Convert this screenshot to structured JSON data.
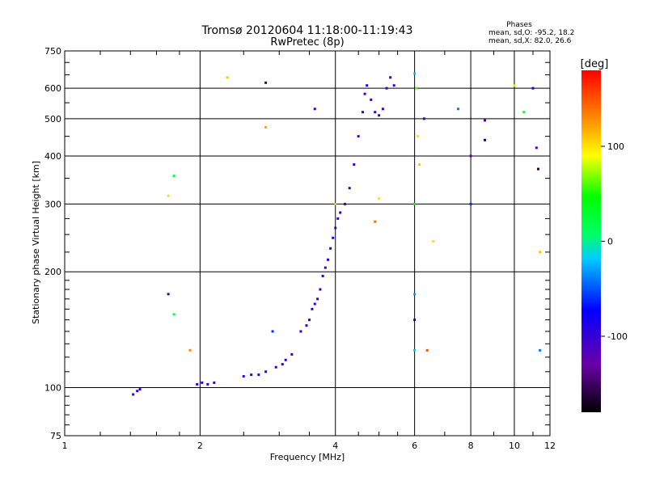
{
  "chart_data": {
    "type": "scatter",
    "title": "Tromsø 20120604 11:18:00-11:19:43",
    "subtitle": "RwPretec (8p)",
    "stats": {
      "title": "Phases",
      "line1": "mean, sd,O: -95.2, 18.2",
      "line2": "mean, sd,X:  82.0, 26.6"
    },
    "xlabel": "Frequency [MHz]",
    "ylabel": "Stationary phase Virtual Height [km]",
    "x_scale": "log",
    "y_scale": "log",
    "xlim": [
      1,
      12
    ],
    "ylim": [
      75,
      750
    ],
    "x_ticks": [
      1,
      2,
      4,
      6,
      8,
      10,
      12
    ],
    "x_tick_labels": [
      "1",
      "2",
      "4",
      "6",
      "8",
      "10",
      "12"
    ],
    "y_ticks": [
      75,
      100,
      200,
      300,
      400,
      500,
      600,
      750
    ],
    "y_tick_labels": [
      "75",
      "100",
      "200",
      "300",
      "400",
      "500",
      "600",
      "750"
    ],
    "grid": true,
    "colorbar": {
      "label": "[deg]",
      "min": -180,
      "max": 180,
      "ticks": [
        100,
        0,
        -100
      ],
      "tick_labels": [
        "100",
        "0",
        "-100"
      ]
    },
    "series": [
      {
        "values": [
          [
            1.42,
            96,
            -100
          ],
          [
            1.45,
            98,
            -100
          ],
          [
            1.47,
            99,
            -95
          ],
          [
            1.97,
            102,
            -100
          ],
          [
            2.02,
            103,
            -95
          ],
          [
            2.08,
            102,
            -100
          ],
          [
            2.15,
            103,
            -90
          ],
          [
            2.5,
            107,
            -100
          ],
          [
            2.6,
            108,
            -95
          ],
          [
            2.7,
            108,
            -100
          ],
          [
            2.8,
            110,
            -90
          ],
          [
            2.95,
            113,
            -100
          ],
          [
            3.05,
            115,
            -95
          ],
          [
            3.1,
            118,
            -100
          ],
          [
            3.2,
            122,
            -90
          ],
          [
            3.35,
            140,
            -100
          ],
          [
            3.45,
            145,
            -95
          ],
          [
            3.5,
            150,
            -100
          ],
          [
            3.55,
            160,
            -100
          ],
          [
            3.6,
            165,
            -95
          ],
          [
            3.65,
            170,
            -100
          ],
          [
            3.7,
            180,
            -100
          ],
          [
            3.75,
            195,
            -95
          ],
          [
            3.8,
            205,
            -100
          ],
          [
            3.85,
            215,
            -90
          ],
          [
            3.9,
            230,
            -100
          ],
          [
            3.95,
            245,
            -95
          ],
          [
            4.0,
            260,
            -100
          ],
          [
            4.05,
            275,
            -100
          ],
          [
            4.1,
            285,
            -95
          ],
          [
            4.2,
            300,
            -100
          ],
          [
            4.3,
            330,
            -95
          ],
          [
            4.4,
            380,
            -100
          ],
          [
            4.5,
            450,
            -100
          ],
          [
            4.6,
            520,
            -95
          ],
          [
            4.65,
            580,
            -100
          ],
          [
            4.7,
            610,
            -95
          ],
          [
            4.8,
            560,
            -100
          ],
          [
            4.9,
            520,
            -95
          ],
          [
            5.0,
            510,
            -100
          ],
          [
            5.1,
            530,
            -95
          ],
          [
            5.2,
            600,
            -100
          ],
          [
            5.3,
            640,
            -95
          ],
          [
            5.4,
            610,
            -100
          ],
          [
            1.75,
            155,
            20
          ],
          [
            2.9,
            140,
            -60
          ],
          [
            3.6,
            530,
            -100
          ],
          [
            6.0,
            655,
            -20
          ],
          [
            6.05,
            600,
            60
          ],
          [
            6.1,
            450,
            100
          ],
          [
            6.15,
            380,
            110
          ],
          [
            6.3,
            500,
            -100
          ],
          [
            6.0,
            300,
            40
          ],
          [
            6.0,
            175,
            -30
          ],
          [
            6.0,
            150,
            -160
          ],
          [
            6.0,
            125,
            -20
          ],
          [
            7.5,
            530,
            -40
          ],
          [
            8.0,
            400,
            -120
          ],
          [
            8.0,
            300,
            -60
          ],
          [
            8.6,
            495,
            -140
          ],
          [
            8.6,
            440,
            -160
          ],
          [
            10.0,
            610,
            80
          ],
          [
            10.5,
            520,
            20
          ],
          [
            11.0,
            600,
            -80
          ],
          [
            11.2,
            420,
            -110
          ],
          [
            11.3,
            370,
            -160
          ],
          [
            11.4,
            225,
            110
          ],
          [
            11.4,
            125,
            -40
          ],
          [
            2.3,
            640,
            110
          ],
          [
            2.8,
            620,
            -150
          ],
          [
            2.8,
            475,
            120
          ],
          [
            1.7,
            315,
            100
          ],
          [
            1.75,
            355,
            20
          ],
          [
            1.7,
            175,
            -140
          ],
          [
            1.9,
            125,
            130
          ],
          [
            4.9,
            270,
            140
          ],
          [
            5.0,
            310,
            100
          ],
          [
            4.0,
            300,
            110
          ],
          [
            6.6,
            240,
            100
          ],
          [
            6.4,
            125,
            150
          ]
        ]
      }
    ]
  }
}
